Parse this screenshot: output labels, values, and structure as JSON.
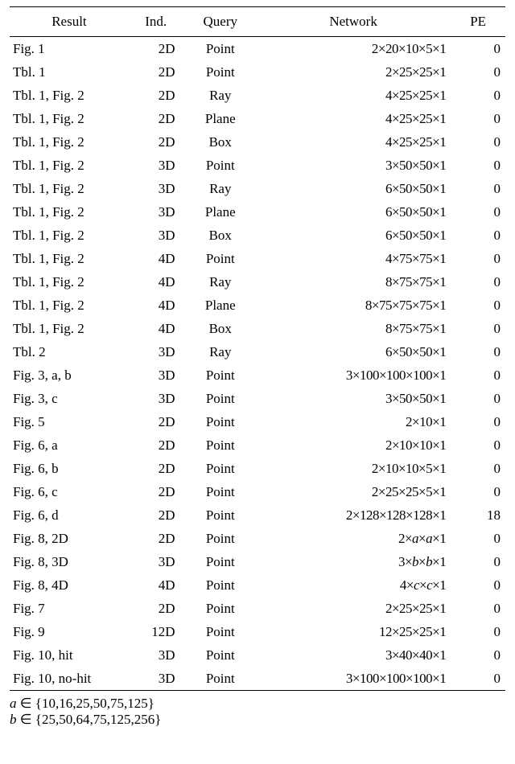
{
  "table": {
    "columns": [
      "Result",
      "Ind.",
      "Query",
      "Network",
      "PE"
    ],
    "col_widths_pct": [
      24,
      11,
      15,
      39,
      11
    ],
    "rows": [
      [
        "Fig. 1",
        "2D",
        "Point",
        "2×20×10×5×1",
        "0"
      ],
      [
        "Tbl. 1",
        "2D",
        "Point",
        "2×25×25×1",
        "0"
      ],
      [
        "Tbl. 1, Fig. 2",
        "2D",
        "Ray",
        "4×25×25×1",
        "0"
      ],
      [
        "Tbl. 1, Fig. 2",
        "2D",
        "Plane",
        "4×25×25×1",
        "0"
      ],
      [
        "Tbl. 1, Fig. 2",
        "2D",
        "Box",
        "4×25×25×1",
        "0"
      ],
      [
        "Tbl. 1, Fig. 2",
        "3D",
        "Point",
        "3×50×50×1",
        "0"
      ],
      [
        "Tbl. 1, Fig. 2",
        "3D",
        "Ray",
        "6×50×50×1",
        "0"
      ],
      [
        "Tbl. 1, Fig. 2",
        "3D",
        "Plane",
        "6×50×50×1",
        "0"
      ],
      [
        "Tbl. 1, Fig. 2",
        "3D",
        "Box",
        "6×50×50×1",
        "0"
      ],
      [
        "Tbl. 1, Fig. 2",
        "4D",
        "Point",
        "4×75×75×1",
        "0"
      ],
      [
        "Tbl. 1, Fig. 2",
        "4D",
        "Ray",
        "8×75×75×1",
        "0"
      ],
      [
        "Tbl. 1, Fig. 2",
        "4D",
        "Plane",
        "8×75×75×75×1",
        "0"
      ],
      [
        "Tbl. 1, Fig. 2",
        "4D",
        "Box",
        "8×75×75×1",
        "0"
      ],
      [
        "Tbl. 2",
        "3D",
        "Ray",
        "6×50×50×1",
        "0"
      ],
      [
        "Fig. 3, a, b",
        "3D",
        "Point",
        "3×100×100×100×1",
        "0"
      ],
      [
        "Fig. 3, c",
        "3D",
        "Point",
        "3×50×50×1",
        "0"
      ],
      [
        "Fig. 5",
        "2D",
        "Point",
        "2×10×1",
        "0"
      ],
      [
        "Fig. 6, a",
        "2D",
        "Point",
        "2×10×10×1",
        "0"
      ],
      [
        "Fig. 6, b",
        "2D",
        "Point",
        "2×10×10×5×1",
        "0"
      ],
      [
        "Fig. 6, c",
        "2D",
        "Point",
        "2×25×25×5×1",
        "0"
      ],
      [
        "Fig. 6, d",
        "2D",
        "Point",
        "2×128×128×128×1",
        "18"
      ],
      [
        "Fig. 8, 2D",
        "2D",
        "Point",
        "2×<i>a</i>×<i>a</i>×1",
        "0"
      ],
      [
        "Fig. 8, 3D",
        "3D",
        "Point",
        "3×<i>b</i>×<i>b</i>×1",
        "0"
      ],
      [
        "Fig. 8, 4D",
        "4D",
        "Point",
        "4×<i>c</i>×<i>c</i>×1",
        "0"
      ],
      [
        "Fig. 7",
        "2D",
        "Point",
        "2×25×25×1",
        "0"
      ],
      [
        "Fig. 9",
        "12D",
        "Point",
        "12×25×25×1",
        "0"
      ],
      [
        "Fig. 10, hit",
        "3D",
        "Point",
        "3×40×40×1",
        "0"
      ],
      [
        "Fig. 10, no-hit",
        "3D",
        "Point",
        "3×100×100×100×1",
        "0"
      ]
    ]
  },
  "footnotes": [
    "<span class=\"ital\">a</span> ∈ {10,16,25,50,75,125}",
    "<span class=\"ital\">b</span> ∈ {25,50,64,75,125,256}"
  ]
}
